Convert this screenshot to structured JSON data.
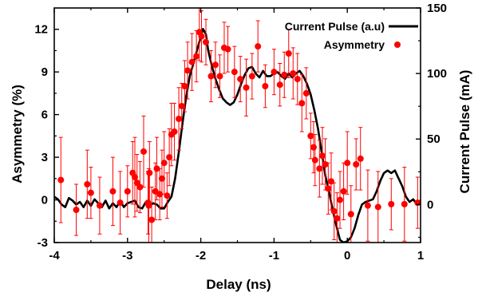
{
  "chart_data": {
    "type": "scatter",
    "xlabel": "Delay (ns)",
    "ylabel_left": "Asymmetry (%)",
    "ylabel_right": "Current Pulse (mA)",
    "xlim": [
      -4,
      1
    ],
    "ylim_left": [
      -3,
      13.5
    ],
    "ylim_right": [
      -29,
      150
    ],
    "x_ticks": [
      "-4",
      "-3",
      "-2",
      "-1",
      "0",
      "1"
    ],
    "x_tick_values": [
      -4,
      -3,
      -2,
      -1,
      0,
      1
    ],
    "y_left_ticks": [
      "-3",
      "0",
      "3",
      "6",
      "9",
      "12"
    ],
    "y_left_tick_values": [
      -3,
      0,
      3,
      6,
      9,
      12
    ],
    "y_right_ticks": [
      "0",
      "50",
      "100",
      "150"
    ],
    "y_right_tick_values": [
      0,
      50,
      100,
      150
    ],
    "legend": {
      "position": "top-right",
      "entries": [
        "Current Pulse (a.u)",
        "Asymmetry"
      ]
    },
    "colors": {
      "line": "#000000",
      "points": "#ff0000"
    },
    "series": [
      {
        "name": "Current Pulse (a.u)",
        "kind": "line",
        "axis": "right",
        "x": [
          -4.0,
          -3.95,
          -3.9,
          -3.85,
          -3.8,
          -3.75,
          -3.7,
          -3.65,
          -3.6,
          -3.55,
          -3.5,
          -3.45,
          -3.4,
          -3.35,
          -3.3,
          -3.25,
          -3.2,
          -3.15,
          -3.1,
          -3.05,
          -3.0,
          -2.95,
          -2.9,
          -2.85,
          -2.8,
          -2.75,
          -2.7,
          -2.65,
          -2.6,
          -2.55,
          -2.5,
          -2.45,
          -2.4,
          -2.35,
          -2.3,
          -2.25,
          -2.2,
          -2.15,
          -2.1,
          -2.05,
          -2.0,
          -1.97,
          -1.93,
          -1.9,
          -1.85,
          -1.8,
          -1.75,
          -1.7,
          -1.65,
          -1.6,
          -1.55,
          -1.5,
          -1.45,
          -1.4,
          -1.35,
          -1.3,
          -1.25,
          -1.2,
          -1.15,
          -1.1,
          -1.05,
          -1.0,
          -0.95,
          -0.9,
          -0.85,
          -0.8,
          -0.75,
          -0.7,
          -0.65,
          -0.6,
          -0.55,
          -0.5,
          -0.45,
          -0.4,
          -0.35,
          -0.3,
          -0.25,
          -0.2,
          -0.15,
          -0.1,
          -0.05,
          0.0,
          0.05,
          0.1,
          0.15,
          0.2,
          0.25,
          0.3,
          0.35,
          0.4,
          0.45,
          0.5,
          0.55,
          0.6,
          0.65,
          0.7,
          0.75,
          0.8,
          0.85,
          0.9,
          0.95,
          1.0
        ],
        "y": [
          6,
          4,
          0,
          -2,
          5,
          3,
          0,
          2,
          -2,
          3,
          -1,
          4,
          1,
          -2,
          3,
          -3,
          1,
          -2,
          3,
          -2,
          1,
          2,
          3,
          -2,
          -3,
          2,
          -1,
          1,
          0,
          -3,
          -3,
          2,
          6,
          20,
          40,
          62,
          82,
          98,
          108,
          118,
          128,
          134,
          130,
          118,
          106,
          96,
          88,
          81,
          78,
          76,
          78,
          84,
          92,
          99,
          104,
          105,
          100,
          97,
          102,
          98,
          98,
          100,
          101,
          98,
          96,
          100,
          97,
          100,
          102,
          98,
          92,
          84,
          72,
          58,
          40,
          22,
          10,
          -4,
          -16,
          -27,
          -29,
          -28,
          -25,
          -18,
          -8,
          0,
          2,
          3,
          4,
          10,
          18,
          24,
          26,
          24,
          26,
          20,
          14,
          6,
          2,
          4,
          0,
          3
        ],
        "y_axis_tick_note": ""
      },
      {
        "name": "Asymmetry",
        "kind": "scatter",
        "axis": "left",
        "x": [
          -3.91,
          -3.7,
          -3.55,
          -3.5,
          -3.38,
          -3.2,
          -3.1,
          -3.0,
          -2.93,
          -2.9,
          -2.87,
          -2.83,
          -2.78,
          -2.72,
          -2.71,
          -2.7,
          -2.67,
          -2.62,
          -2.6,
          -2.56,
          -2.53,
          -2.5,
          -2.46,
          -2.43,
          -2.4,
          -2.36,
          -2.3,
          -2.26,
          -2.22,
          -2.18,
          -2.12,
          -2.06,
          -2.02,
          -1.99,
          -1.93,
          -1.86,
          -1.8,
          -1.74,
          -1.68,
          -1.63,
          -1.54,
          -1.46,
          -1.38,
          -1.3,
          -1.22,
          -1.12,
          -1.0,
          -0.92,
          -0.86,
          -0.8,
          -0.74,
          -0.68,
          -0.62,
          -0.56,
          -0.5,
          -0.46,
          -0.44,
          -0.38,
          -0.34,
          -0.3,
          -0.26,
          -0.22,
          -0.18,
          -0.14,
          -0.1,
          -0.05,
          0.0,
          0.05,
          0.12,
          0.18,
          0.28,
          0.42,
          0.6,
          0.78,
          0.96
        ],
        "y": [
          1.4,
          -0.7,
          1.1,
          0.5,
          -0.4,
          0.6,
          -0.2,
          0.6,
          1.9,
          1.6,
          1.2,
          0.9,
          3.4,
          -0.2,
          -0.4,
          1.9,
          -1.4,
          0.6,
          2.2,
          0.4,
          1.5,
          2.6,
          0.3,
          3.0,
          4.6,
          4.8,
          5.7,
          6.6,
          8.0,
          9.1,
          9.7,
          10.1,
          11.8,
          11.5,
          11.1,
          8.7,
          9.5,
          8.7,
          10.7,
          10.6,
          9.0,
          8.5,
          7.9,
          8.7,
          10.8,
          8.0,
          9.0,
          8.1,
          8.8,
          10.3,
          8.9,
          8.5,
          6.8,
          7.5,
          4.5,
          3.7,
          2.8,
          2.2,
          3.1,
          2.5,
          0.8,
          1.3,
          -0.8,
          -1.3,
          0.0,
          0.6,
          2.6,
          -1.0,
          2.5,
          2.9,
          -0.4,
          -0.5,
          -0.3,
          -0.3,
          -0.2
        ],
        "err": [
          3.0,
          1.8,
          2.4,
          1.8,
          2.0,
          2.4,
          2.2,
          1.8,
          2.2,
          2.8,
          2.0,
          1.8,
          2.5,
          2.2,
          2.6,
          2.2,
          2.3,
          2.0,
          2.2,
          1.8,
          2.0,
          2.2,
          1.6,
          2.0,
          2.2,
          2.0,
          2.2,
          1.6,
          1.8,
          2.0,
          2.0,
          1.8,
          2.0,
          1.8,
          1.6,
          1.8,
          1.6,
          1.5,
          1.8,
          1.6,
          1.8,
          1.6,
          2.0,
          1.6,
          1.8,
          1.5,
          1.6,
          1.5,
          1.6,
          1.7,
          1.8,
          1.8,
          2.0,
          1.8,
          1.6,
          1.8,
          1.8,
          2.0,
          2.0,
          1.8,
          1.8,
          2.0,
          2.0,
          1.8,
          2.0,
          2.0,
          2.2,
          2.0,
          1.8,
          2.2,
          2.5,
          2.5,
          1.8,
          2.6,
          1.8
        ]
      }
    ]
  }
}
